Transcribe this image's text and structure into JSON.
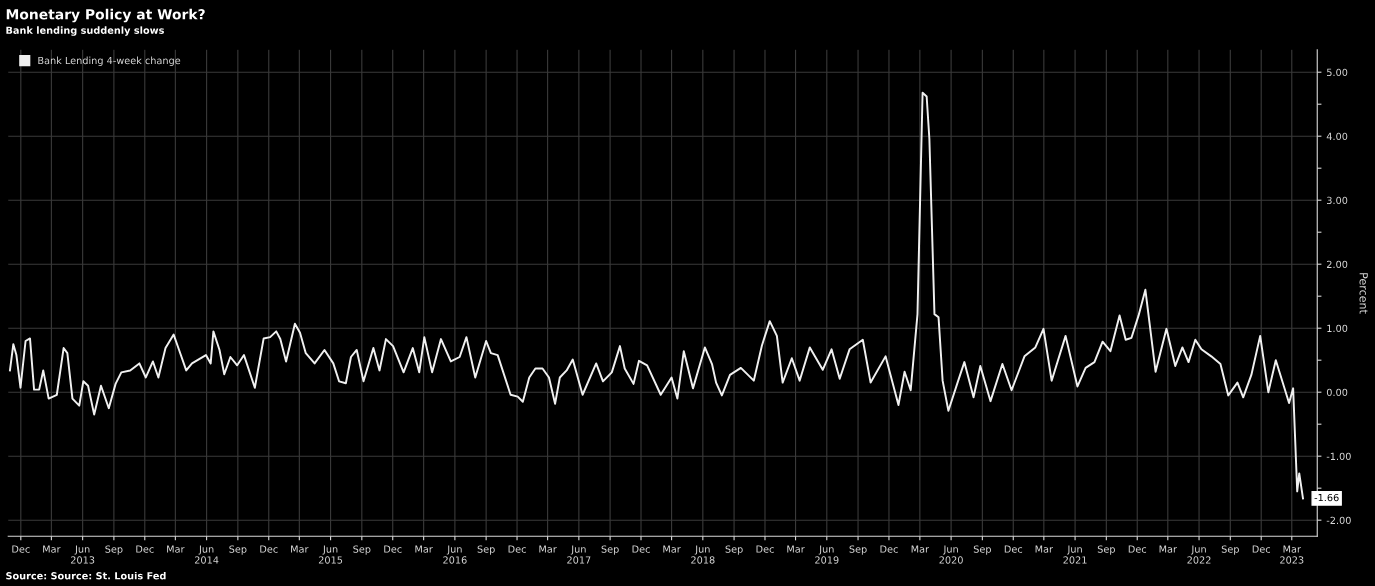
{
  "chart_data": {
    "type": "line",
    "title": "Monetary Policy at Work?",
    "subtitle": "Bank lending suddenly slows",
    "ylabel": "Percent",
    "annotations": [
      {
        "text": "-1.66",
        "x": "2023-04-03",
        "y": -1.66
      },
      "Source: Source: St. Louis Fed"
    ],
    "x": [
      "2012-10-30",
      "2012-11-09",
      "2012-11-18",
      "2012-11-30",
      "2012-12-15",
      "2012-12-28",
      "2013-01-09",
      "2013-01-24",
      "2013-02-05",
      "2013-02-21",
      "2013-03-17",
      "2013-04-06",
      "2013-04-17",
      "2013-05-02",
      "2013-05-22",
      "2013-06-03",
      "2013-06-17",
      "2013-07-05",
      "2013-07-25",
      "2013-08-17",
      "2013-09-06",
      "2013-09-23",
      "2013-10-19",
      "2013-11-15",
      "2013-12-04",
      "2013-12-25",
      "2014-01-10",
      "2014-01-31",
      "2014-02-24",
      "2014-03-12",
      "2014-04-02",
      "2014-04-19",
      "2014-05-30",
      "2014-06-13",
      "2014-06-21",
      "2014-07-09",
      "2014-07-23",
      "2014-08-10",
      "2014-08-30",
      "2014-09-19",
      "2014-10-21",
      "2014-11-16",
      "2014-12-05",
      "2014-12-23",
      "2015-01-04",
      "2015-01-21",
      "2015-02-16",
      "2015-03-03",
      "2015-03-20",
      "2015-04-15",
      "2015-05-14",
      "2015-06-09",
      "2015-06-26",
      "2015-07-16",
      "2015-07-31",
      "2015-08-17",
      "2015-09-06",
      "2015-10-05",
      "2015-10-23",
      "2015-11-11",
      "2015-12-02",
      "2016-01-02",
      "2016-01-29",
      "2016-02-17",
      "2016-03-03",
      "2016-03-26",
      "2016-04-21",
      "2016-05-20",
      "2016-06-15",
      "2016-07-05",
      "2016-07-31",
      "2016-09-01",
      "2016-09-15",
      "2016-10-05",
      "2016-11-12",
      "2016-12-03",
      "2016-12-18",
      "2017-01-06",
      "2017-01-24",
      "2017-02-14",
      "2017-03-05",
      "2017-03-23",
      "2017-04-06",
      "2017-04-26",
      "2017-05-14",
      "2017-06-12",
      "2017-07-22",
      "2017-08-11",
      "2017-09-06",
      "2017-09-30",
      "2017-10-14",
      "2017-11-09",
      "2017-11-25",
      "2017-12-19",
      "2018-01-28",
      "2018-03-01",
      "2018-03-18",
      "2018-04-06",
      "2018-05-03",
      "2018-06-07",
      "2018-06-28",
      "2018-07-10",
      "2018-07-27",
      "2018-08-20",
      "2018-09-21",
      "2018-10-29",
      "2018-11-22",
      "2018-12-15",
      "2019-01-05",
      "2019-01-22",
      "2019-02-18",
      "2019-03-13",
      "2019-04-12",
      "2019-05-20",
      "2019-06-15",
      "2019-07-09",
      "2019-08-07",
      "2019-09-15",
      "2019-10-08",
      "2019-11-21",
      "2019-12-29",
      "2020-01-16",
      "2020-02-03",
      "2020-02-23",
      "2020-03-09",
      "2020-03-21",
      "2020-03-29",
      "2020-04-13",
      "2020-04-25",
      "2020-05-07",
      "2020-05-24",
      "2020-06-20",
      "2020-07-10",
      "2020-08-06",
      "2020-08-26",
      "2020-09-25",
      "2020-10-30",
      "2020-11-26",
      "2021-01-03",
      "2021-02-04",
      "2021-02-28",
      "2021-03-24",
      "2021-05-04",
      "2021-06-08",
      "2021-07-02",
      "2021-07-28",
      "2021-08-21",
      "2021-09-13",
      "2021-10-10",
      "2021-10-28",
      "2021-11-14",
      "2021-12-05",
      "2021-12-25",
      "2022-01-24",
      "2022-02-25",
      "2022-03-23",
      "2022-04-13",
      "2022-05-01",
      "2022-05-21",
      "2022-06-08",
      "2022-07-07",
      "2022-08-03",
      "2022-08-26",
      "2022-09-22",
      "2022-10-09",
      "2022-11-02",
      "2022-11-28",
      "2022-12-22",
      "2023-01-13",
      "2023-02-21",
      "2023-03-05",
      "2023-03-17",
      "2023-03-23",
      "2023-04-03"
    ],
    "series": [
      {
        "name": "Bank Lending 4-week change",
        "color": "#f0f0f0",
        "values": [
          0.34,
          0.75,
          0.58,
          0.07,
          0.8,
          0.84,
          0.04,
          0.04,
          0.34,
          -0.1,
          -0.04,
          0.69,
          0.61,
          -0.1,
          -0.21,
          0.17,
          0.1,
          -0.35,
          0.1,
          -0.25,
          0.13,
          0.31,
          0.34,
          0.45,
          0.23,
          0.48,
          0.23,
          0.69,
          0.9,
          0.66,
          0.34,
          0.45,
          0.58,
          0.45,
          0.95,
          0.66,
          0.28,
          0.55,
          0.42,
          0.58,
          0.07,
          0.84,
          0.86,
          0.95,
          0.83,
          0.48,
          1.07,
          0.93,
          0.61,
          0.45,
          0.66,
          0.45,
          0.17,
          0.14,
          0.55,
          0.66,
          0.17,
          0.69,
          0.34,
          0.83,
          0.72,
          0.31,
          0.69,
          0.31,
          0.86,
          0.31,
          0.83,
          0.48,
          0.55,
          0.86,
          0.23,
          0.8,
          0.61,
          0.58,
          -0.04,
          -0.07,
          -0.15,
          0.23,
          0.37,
          0.37,
          0.23,
          -0.18,
          0.23,
          0.34,
          0.51,
          -0.04,
          0.45,
          0.17,
          0.31,
          0.72,
          0.37,
          0.13,
          0.49,
          0.42,
          -0.04,
          0.23,
          -0.1,
          0.64,
          0.06,
          0.7,
          0.44,
          0.15,
          -0.05,
          0.27,
          0.38,
          0.18,
          0.73,
          1.11,
          0.88,
          0.15,
          0.53,
          0.18,
          0.7,
          0.35,
          0.67,
          0.21,
          0.67,
          0.82,
          0.15,
          0.56,
          -0.2,
          0.32,
          0.03,
          1.22,
          4.68,
          4.62,
          3.96,
          1.22,
          1.17,
          0.18,
          -0.29,
          0.15,
          0.47,
          -0.08,
          0.41,
          -0.14,
          0.44,
          0.03,
          0.56,
          0.7,
          0.99,
          0.18,
          0.88,
          0.09,
          0.38,
          0.47,
          0.79,
          0.64,
          1.2,
          0.82,
          0.85,
          1.2,
          1.6,
          0.32,
          0.99,
          0.41,
          0.7,
          0.47,
          0.82,
          0.67,
          0.56,
          0.44,
          -0.05,
          0.15,
          -0.08,
          0.27,
          0.88,
          0.0,
          0.5,
          -0.17,
          0.06,
          -1.55,
          -1.27,
          -1.66
        ]
      }
    ],
    "xlim": [
      "2012-10-25",
      "2023-05-15"
    ],
    "xticks": [
      {
        "value": "2012-12-01",
        "label": "Dec"
      },
      {
        "value": "2013-03-01",
        "label": "Mar"
      },
      {
        "value": "2013-06-01",
        "label": "Jun\n2013"
      },
      {
        "value": "2013-09-01",
        "label": "Sep"
      },
      {
        "value": "2013-12-01",
        "label": "Dec"
      },
      {
        "value": "2014-03-01",
        "label": "Mar"
      },
      {
        "value": "2014-06-01",
        "label": "Jun\n2014"
      },
      {
        "value": "2014-09-01",
        "label": "Sep"
      },
      {
        "value": "2014-12-01",
        "label": "Dec"
      },
      {
        "value": "2015-03-01",
        "label": "Mar"
      },
      {
        "value": "2015-06-01",
        "label": "Jun\n2015"
      },
      {
        "value": "2015-09-01",
        "label": "Sep"
      },
      {
        "value": "2015-12-01",
        "label": "Dec"
      },
      {
        "value": "2016-03-01",
        "label": "Mar"
      },
      {
        "value": "2016-06-01",
        "label": "Jun\n2016"
      },
      {
        "value": "2016-09-01",
        "label": "Sep"
      },
      {
        "value": "2016-12-01",
        "label": "Dec"
      },
      {
        "value": "2017-03-01",
        "label": "Mar"
      },
      {
        "value": "2017-06-01",
        "label": "Jun\n2017"
      },
      {
        "value": "2017-09-01",
        "label": "Sep"
      },
      {
        "value": "2017-12-01",
        "label": "Dec"
      },
      {
        "value": "2018-03-01",
        "label": "Mar"
      },
      {
        "value": "2018-06-01",
        "label": "Jun\n2018"
      },
      {
        "value": "2018-09-01",
        "label": "Sep"
      },
      {
        "value": "2018-12-01",
        "label": "Dec"
      },
      {
        "value": "2019-03-01",
        "label": "Mar"
      },
      {
        "value": "2019-06-01",
        "label": "Jun\n2019"
      },
      {
        "value": "2019-09-01",
        "label": "Sep"
      },
      {
        "value": "2019-12-01",
        "label": "Dec"
      },
      {
        "value": "2020-03-01",
        "label": "Mar"
      },
      {
        "value": "2020-06-01",
        "label": "Jun\n2020"
      },
      {
        "value": "2020-09-01",
        "label": "Sep"
      },
      {
        "value": "2020-12-01",
        "label": "Dec"
      },
      {
        "value": "2021-03-01",
        "label": "Mar"
      },
      {
        "value": "2021-06-01",
        "label": "Jun\n2021"
      },
      {
        "value": "2021-09-01",
        "label": "Sep"
      },
      {
        "value": "2021-12-01",
        "label": "Dec"
      },
      {
        "value": "2022-03-01",
        "label": "Mar"
      },
      {
        "value": "2022-06-01",
        "label": "Jun\n2022"
      },
      {
        "value": "2022-09-01",
        "label": "Sep"
      },
      {
        "value": "2022-12-01",
        "label": "Dec"
      },
      {
        "value": "2023-03-01",
        "label": "Mar\n2023"
      }
    ],
    "ylim": [
      -2.25,
      5.35
    ],
    "yticks": [
      {
        "value": -2,
        "label": "-2.00"
      },
      {
        "value": -1.5,
        "label": null
      },
      {
        "value": -1,
        "label": "-1.00"
      },
      {
        "value": -0.5,
        "label": null
      },
      {
        "value": 0,
        "label": "0.00"
      },
      {
        "value": 0.5,
        "label": null
      },
      {
        "value": 1,
        "label": "1.00"
      },
      {
        "value": 1.5,
        "label": null
      },
      {
        "value": 2,
        "label": "2.00"
      },
      {
        "value": 2.5,
        "label": null
      },
      {
        "value": 3,
        "label": "3.00"
      },
      {
        "value": 3.5,
        "label": null
      },
      {
        "value": 4,
        "label": "4.00"
      },
      {
        "value": 4.5,
        "label": null
      },
      {
        "value": 5,
        "label": "5.00"
      }
    ],
    "grid": true,
    "legend": "top left",
    "marker": "none",
    "line_style": "solid"
  }
}
